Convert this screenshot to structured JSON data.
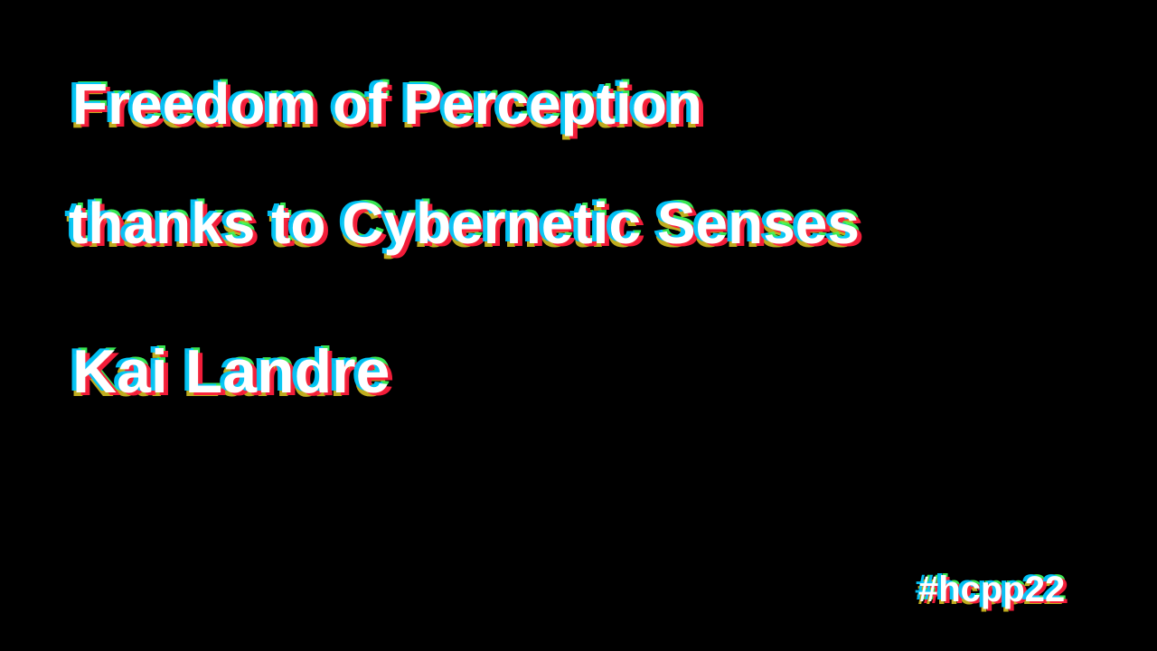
{
  "slide": {
    "title_line_1": "Freedom of Perception",
    "title_line_2": "thanks to Cybernetic Senses",
    "speaker": "Kai Landre",
    "hashtag": "#hcpp22"
  },
  "colors": {
    "background": "#000000",
    "text": "#ffffff",
    "glitch_cyan": "#00c8ff",
    "glitch_red": "#ff1e3c",
    "glitch_green": "#3cff5a",
    "glitch_yellow": "#ffe628"
  }
}
